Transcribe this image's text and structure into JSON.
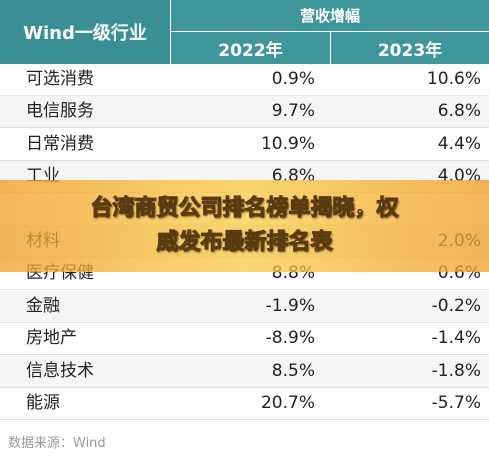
{
  "table": {
    "corner": "Wind一级行业",
    "group": "营收增幅",
    "years": [
      "2022年",
      "2023年"
    ],
    "rows": [
      {
        "name": "可选消费",
        "a": "0.9%",
        "b": "10.6%"
      },
      {
        "name": "电信服务",
        "a": "9.7%",
        "b": "6.8%"
      },
      {
        "name": "日常消费",
        "a": "10.9%",
        "b": "4.4%"
      },
      {
        "name": "工业",
        "a": "6.8%",
        "b": "4.0%"
      },
      {},
      {
        "name": "材料",
        "b": "2.0%"
      },
      {
        "name": "医疗保健",
        "a": "8.8%",
        "b": "0.6%"
      },
      {
        "name": "金融",
        "a": "-1.9%",
        "b": "-0.2%"
      },
      {
        "name": "房地产",
        "a": "-8.9%",
        "b": "-1.4%"
      },
      {
        "name": "信息技术",
        "a": "8.5%",
        "b": "-1.8%"
      },
      {
        "name": "能源",
        "a": "20.7%",
        "b": "-5.7%"
      }
    ]
  },
  "banner": {
    "lines": [
      "台湾商贸公司排名榜单揭晓，权",
      "威发布最新排名表"
    ]
  },
  "footer": "数据来源：Wind"
}
